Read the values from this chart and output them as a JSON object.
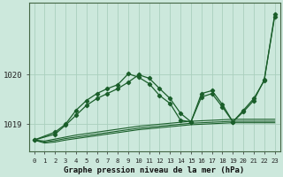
{
  "title": "Graphe pression niveau de la mer (hPa)",
  "background_color": "#cce8dc",
  "grid_color": "#aacfbe",
  "line_color": "#1a5e2a",
  "ylim": [
    1018.45,
    1021.45
  ],
  "yticks": [
    1019.0,
    1020.0
  ],
  "x_labels": [
    "0",
    "1",
    "2",
    "3",
    "4",
    "5",
    "6",
    "7",
    "8",
    "9",
    "10",
    "11",
    "12",
    "13",
    "14",
    "15",
    "16",
    "17",
    "18",
    "19",
    "20",
    "21",
    "22",
    "23"
  ],
  "straight_lines": [
    [
      1018.68,
      1018.66,
      1018.7,
      1018.74,
      1018.78,
      1018.81,
      1018.84,
      1018.87,
      1018.9,
      1018.93,
      1018.96,
      1018.98,
      1019.0,
      1019.02,
      1019.04,
      1019.06,
      1019.07,
      1019.08,
      1019.09,
      1019.1,
      1019.1,
      1019.1,
      1019.1,
      1019.1
    ],
    [
      1018.68,
      1018.64,
      1018.67,
      1018.71,
      1018.74,
      1018.77,
      1018.8,
      1018.83,
      1018.86,
      1018.89,
      1018.92,
      1018.94,
      1018.96,
      1018.98,
      1019.0,
      1019.02,
      1019.03,
      1019.04,
      1019.05,
      1019.06,
      1019.06,
      1019.06,
      1019.06,
      1019.06
    ],
    [
      1018.68,
      1018.62,
      1018.64,
      1018.68,
      1018.71,
      1018.74,
      1018.77,
      1018.8,
      1018.83,
      1018.86,
      1018.89,
      1018.91,
      1018.93,
      1018.95,
      1018.97,
      1018.99,
      1019.0,
      1019.01,
      1019.02,
      1019.03,
      1019.03,
      1019.03,
      1019.03,
      1019.03
    ]
  ],
  "wavy1_x": [
    0,
    2,
    3,
    4,
    5,
    6,
    7,
    8,
    9,
    10,
    11,
    12,
    13,
    14,
    15,
    16,
    17,
    18,
    19,
    20,
    21,
    22,
    23
  ],
  "wavy1_y": [
    1018.68,
    1018.84,
    1019.0,
    1019.28,
    1019.48,
    1019.62,
    1019.72,
    1019.8,
    1020.02,
    1019.95,
    1019.82,
    1019.58,
    1019.42,
    1019.08,
    1019.05,
    1019.62,
    1019.68,
    1019.4,
    1019.05,
    1019.28,
    1019.52,
    1019.88,
    1021.22
  ],
  "wavy2_x": [
    0,
    2,
    3,
    4,
    5,
    6,
    7,
    8,
    9,
    10,
    11,
    12,
    13,
    14,
    15,
    16,
    17,
    18,
    19,
    20,
    21,
    22,
    23
  ],
  "wavy2_y": [
    1018.68,
    1018.8,
    1018.98,
    1019.18,
    1019.38,
    1019.52,
    1019.62,
    1019.72,
    1019.85,
    1020.0,
    1019.93,
    1019.72,
    1019.52,
    1019.22,
    1019.05,
    1019.55,
    1019.62,
    1019.35,
    1019.05,
    1019.25,
    1019.48,
    1019.9,
    1021.18
  ]
}
